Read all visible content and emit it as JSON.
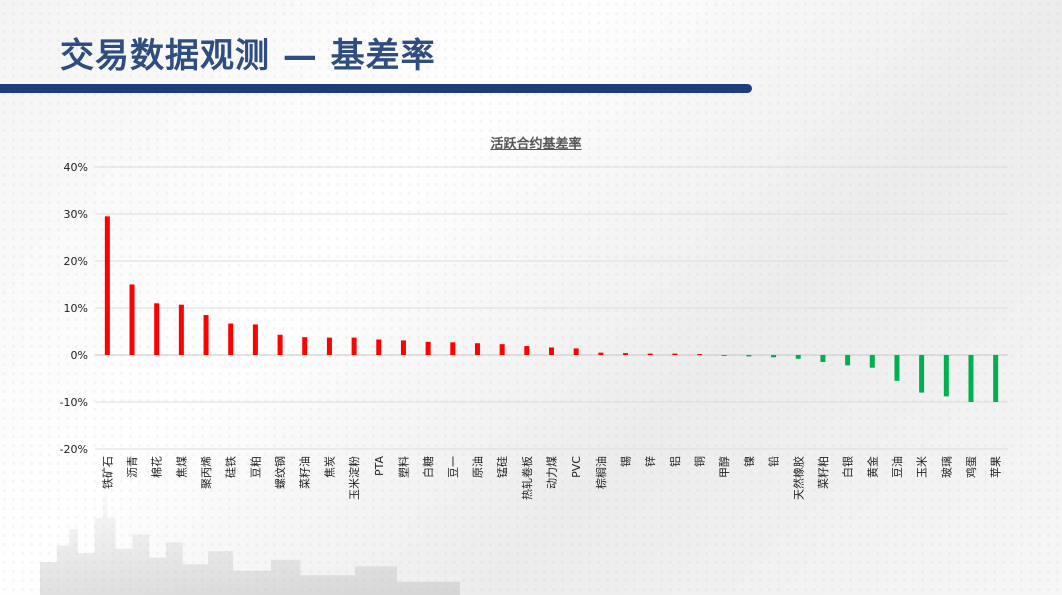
{
  "page": {
    "title": "交易数据观测 — 基差率"
  },
  "chart_data": {
    "type": "bar",
    "title": "活跃合约基差率",
    "xlabel": "",
    "ylabel": "",
    "ylim": [
      -20,
      40
    ],
    "yticks": [
      "-20%",
      "-10%",
      "0%",
      "10%",
      "20%",
      "30%",
      "40%"
    ],
    "grid": true,
    "positive_color": "#ff0000",
    "negative_color": "#00b050",
    "categories": [
      "铁矿石",
      "沥青",
      "棉花",
      "焦煤",
      "聚丙烯",
      "硅铁",
      "豆粕",
      "螺纹钢",
      "菜籽油",
      "焦炭",
      "玉米淀粉",
      "PTA",
      "塑料",
      "白糖",
      "豆一",
      "原油",
      "锰硅",
      "热轧卷板",
      "动力煤",
      "PVC",
      "棕榈油",
      "锡",
      "锌",
      "铝",
      "铜",
      "甲醇",
      "镍",
      "铅",
      "天然橡胶",
      "菜籽粕",
      "白银",
      "黄金",
      "豆油",
      "玉米",
      "玻璃",
      "鸡蛋",
      "苹果"
    ],
    "values": [
      29.5,
      15,
      11,
      10.7,
      8.5,
      6.7,
      6.5,
      4.3,
      3.8,
      3.7,
      3.7,
      3.3,
      3.1,
      2.8,
      2.7,
      2.5,
      2.3,
      1.9,
      1.6,
      1.4,
      0.5,
      0.4,
      0.3,
      0.3,
      0.2,
      -0.2,
      -0.3,
      -0.5,
      -0.8,
      -1.5,
      -2.2,
      -2.7,
      -5.5,
      -8,
      -8.8,
      -10,
      -10
    ]
  }
}
